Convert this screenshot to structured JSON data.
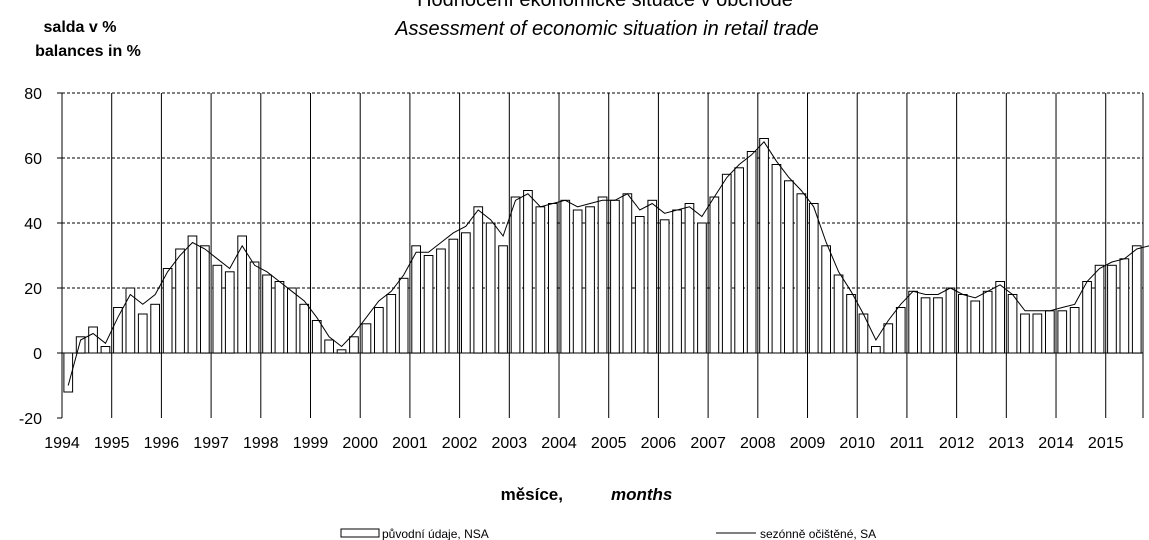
{
  "chart_data": {
    "type": "bar",
    "title": "Hodnocení ekonomické situace v obchodě",
    "subtitle": "Assessment of economic situation in retail trade",
    "ylabel_cz": "salda v %",
    "ylabel_en": "balances in %",
    "xlabel_cz": "měsíce,",
    "xlabel_en": "months",
    "ylim": [
      -20,
      80
    ],
    "yticks": [
      -20,
      0,
      20,
      40,
      60,
      80
    ],
    "xlim": [
      1994,
      2015.75
    ],
    "xticks": [
      "1994",
      "1995",
      "1996",
      "1997",
      "1998",
      "1999",
      "2000",
      "2001",
      "2002",
      "2003",
      "2004",
      "2005",
      "2006",
      "2007",
      "2008",
      "2009",
      "2010",
      "2011",
      "2012",
      "2013",
      "2014",
      "2015"
    ],
    "grid": "horizontal dashed at 20, 40, 60, 80; vertical solid at each year",
    "legend_position": "bottom-center",
    "series": [
      {
        "name": "původní údaje, NSA",
        "render": "bar",
        "x": [
          1994.0,
          1994.25,
          1994.5,
          1994.75,
          1995.0,
          1995.25,
          1995.5,
          1995.75,
          1996.0,
          1996.25,
          1996.5,
          1996.75,
          1997.0,
          1997.25,
          1997.5,
          1997.75,
          1998.0,
          1998.25,
          1998.5,
          1998.75,
          1999.0,
          1999.25,
          1999.5,
          1999.75,
          2000.0,
          2000.25,
          2000.5,
          2000.75,
          2001.0,
          2001.25,
          2001.5,
          2001.75,
          2002.0,
          2002.25,
          2002.5,
          2002.75,
          2003.0,
          2003.25,
          2003.5,
          2003.75,
          2004.0,
          2004.25,
          2004.5,
          2004.75,
          2005.0,
          2005.25,
          2005.5,
          2005.75,
          2006.0,
          2006.25,
          2006.5,
          2006.75,
          2007.0,
          2007.25,
          2007.5,
          2007.75,
          2008.0,
          2008.25,
          2008.5,
          2008.75,
          2009.0,
          2009.25,
          2009.5,
          2009.75,
          2010.0,
          2010.25,
          2010.5,
          2010.75,
          2011.0,
          2011.25,
          2011.5,
          2011.75,
          2012.0,
          2012.25,
          2012.5,
          2012.75,
          2013.0,
          2013.25,
          2013.5,
          2013.75,
          2014.0,
          2014.25,
          2014.5,
          2014.75,
          2015.0,
          2015.25,
          2015.5
        ],
        "values": [
          -12,
          5,
          8,
          2,
          14,
          20,
          12,
          15,
          26,
          32,
          36,
          33,
          27,
          25,
          36,
          28,
          24,
          22,
          20,
          15,
          10,
          4,
          1,
          5,
          9,
          14,
          18,
          23,
          33,
          30,
          32,
          35,
          37,
          45,
          40,
          33,
          48,
          50,
          45,
          46,
          47,
          44,
          45,
          48,
          47,
          49,
          42,
          47,
          41,
          44,
          46,
          40,
          48,
          55,
          57,
          62,
          66,
          58,
          53,
          49,
          46,
          33,
          24,
          18,
          12,
          2,
          9,
          14,
          19,
          17,
          17,
          20,
          18,
          16,
          19,
          22,
          18,
          12,
          12,
          13,
          13,
          14,
          22,
          27,
          27,
          29,
          33
        ]
      },
      {
        "name": "sezónně očištěné, SA",
        "render": "line",
        "x": [
          1994.0,
          1994.25,
          1994.5,
          1994.75,
          1995.0,
          1995.25,
          1995.5,
          1995.75,
          1996.0,
          1996.25,
          1996.5,
          1996.75,
          1997.0,
          1997.25,
          1997.5,
          1997.75,
          1998.0,
          1998.25,
          1998.5,
          1998.75,
          1999.0,
          1999.25,
          1999.5,
          1999.75,
          2000.0,
          2000.25,
          2000.5,
          2000.75,
          2001.0,
          2001.25,
          2001.5,
          2001.75,
          2002.0,
          2002.25,
          2002.5,
          2002.75,
          2003.0,
          2003.25,
          2003.5,
          2003.75,
          2004.0,
          2004.25,
          2004.5,
          2004.75,
          2005.0,
          2005.25,
          2005.5,
          2005.75,
          2006.0,
          2006.25,
          2006.5,
          2006.75,
          2007.0,
          2007.25,
          2007.5,
          2007.75,
          2008.0,
          2008.25,
          2008.5,
          2008.75,
          2009.0,
          2009.25,
          2009.5,
          2009.75,
          2010.0,
          2010.25,
          2010.5,
          2010.75,
          2011.0,
          2011.25,
          2011.5,
          2011.75,
          2012.0,
          2012.25,
          2012.5,
          2012.75,
          2013.0,
          2013.25,
          2013.5,
          2013.75,
          2014.0,
          2014.25,
          2014.5,
          2014.75,
          2015.0,
          2015.25,
          2015.5,
          2015.75
        ],
        "values": [
          -10,
          4,
          6,
          3,
          11,
          18,
          15,
          18,
          25,
          30,
          34,
          32,
          29,
          26,
          33,
          27,
          25,
          22,
          19,
          16,
          11,
          5,
          2,
          6,
          11,
          16,
          19,
          24,
          31,
          31,
          34,
          37,
          39,
          44,
          41,
          36,
          47,
          49,
          45,
          46,
          47,
          45,
          46,
          47,
          47,
          49,
          44,
          46,
          43,
          44,
          45,
          42,
          48,
          54,
          58,
          61,
          65,
          59,
          54,
          50,
          45,
          34,
          25,
          19,
          12,
          4,
          10,
          15,
          19,
          18,
          18,
          20,
          18,
          17,
          19,
          21,
          18,
          13,
          13,
          13,
          14,
          15,
          22,
          26,
          28,
          29,
          32,
          33
        ]
      }
    ]
  }
}
